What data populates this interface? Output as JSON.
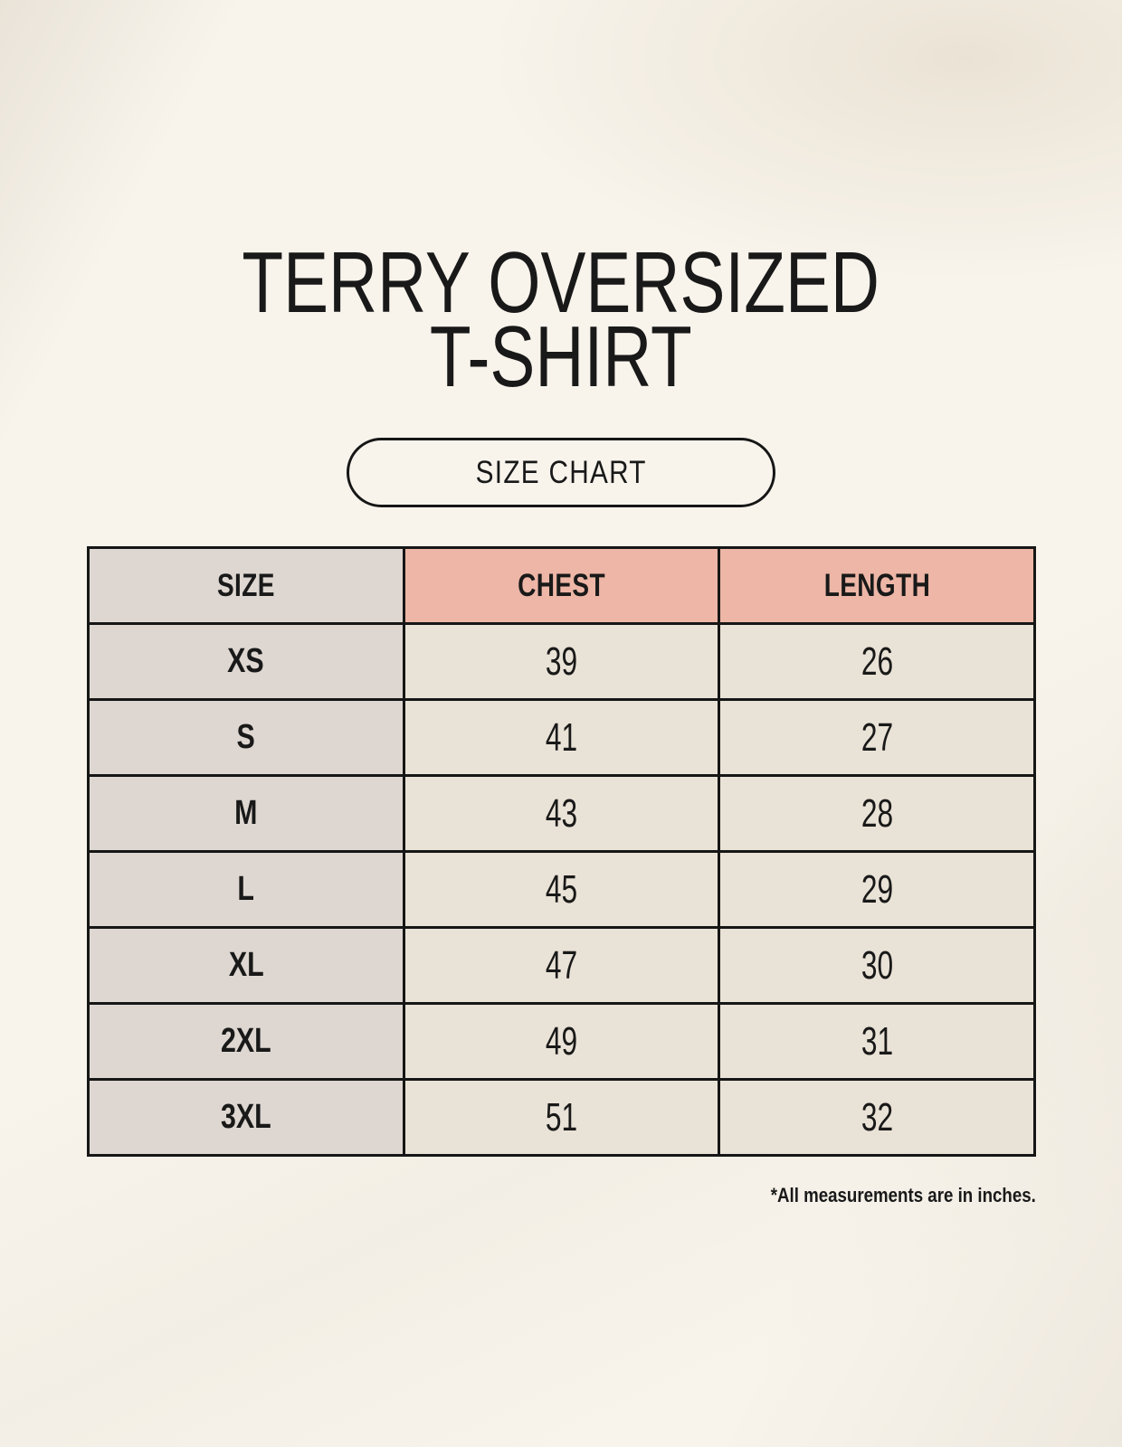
{
  "header": {
    "title_line1": "TERRY OVERSIZED",
    "title_line2": "T-SHIRT",
    "button_label": "SIZE CHART"
  },
  "table": {
    "headers": [
      "SIZE",
      "CHEST",
      "LENGTH"
    ],
    "rows": [
      {
        "size": "XS",
        "chest": "39",
        "length": "26"
      },
      {
        "size": "S",
        "chest": "41",
        "length": "27"
      },
      {
        "size": "M",
        "chest": "43",
        "length": "28"
      },
      {
        "size": "L",
        "chest": "45",
        "length": "29"
      },
      {
        "size": "XL",
        "chest": "47",
        "length": "30"
      },
      {
        "size": "2XL",
        "chest": "49",
        "length": "31"
      },
      {
        "size": "3XL",
        "chest": "51",
        "length": "32"
      }
    ]
  },
  "footnote": "*All measurements are in inches.",
  "colors": {
    "background": "#f8f4ec",
    "size_column_bg": "#ded7d1",
    "cell_bg": "#e9e2d6",
    "header_accent_bg": "#edb6a6",
    "border": "#161616",
    "text": "#191919"
  },
  "chart_data": {
    "type": "table",
    "title": "TERRY OVERSIZED T-SHIRT",
    "columns": [
      "SIZE",
      "CHEST",
      "LENGTH"
    ],
    "rows": [
      [
        "XS",
        39,
        26
      ],
      [
        "S",
        41,
        27
      ],
      [
        "M",
        43,
        28
      ],
      [
        "L",
        45,
        29
      ],
      [
        "XL",
        47,
        30
      ],
      [
        "2XL",
        49,
        31
      ],
      [
        "3XL",
        51,
        32
      ]
    ],
    "units": "inches",
    "note": "*All measurements are in inches.",
    "layout_hints": {
      "header_accent_columns": [
        "CHEST",
        "LENGTH"
      ],
      "first_column_shaded": true,
      "grid": true
    }
  }
}
